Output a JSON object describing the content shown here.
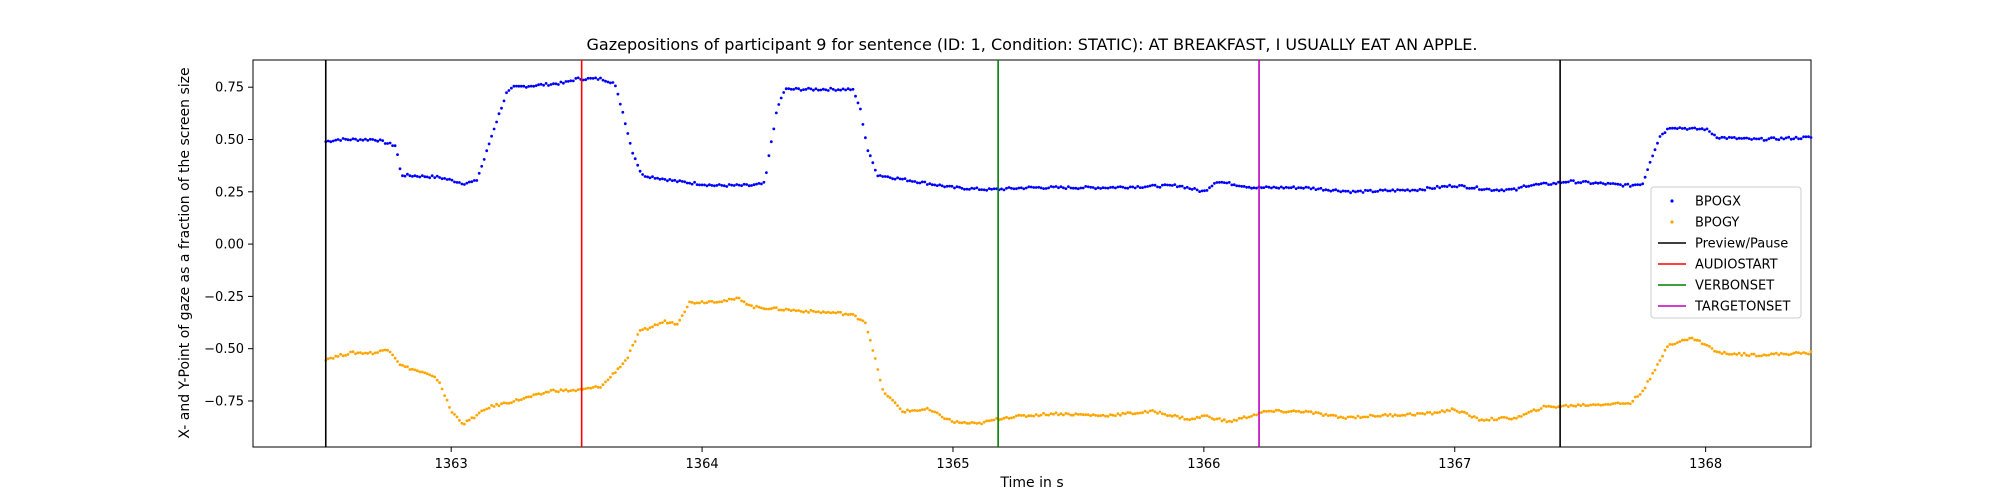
{
  "chart_data": {
    "type": "scatter",
    "title": "Gazepositions of participant 9 for sentence (ID: 1, Condition: STATIC):   AT BREAKFAST, I USUALLY EAT AN APPLE.",
    "xlabel": "Time in s",
    "ylabel": "X- and Y-Point of gaze as a fraction of the screen size",
    "xlim": [
      1362.21,
      1368.42
    ],
    "ylim": [
      -0.97,
      0.88
    ],
    "x_ticks": [
      1363,
      1364,
      1365,
      1366,
      1367,
      1368
    ],
    "y_ticks": [
      0.75,
      0.5,
      0.25,
      0.0,
      -0.25,
      -0.5,
      -0.75
    ],
    "grid": false,
    "legend_position": "center right",
    "series": [
      {
        "name": "BPOGX",
        "marker": "dot",
        "color": "#0000ff",
        "x_start": 1362.5,
        "x_end": 1368.42,
        "keypoints": [
          [
            1362.5,
            0.49
          ],
          [
            1362.55,
            0.5
          ],
          [
            1362.7,
            0.5
          ],
          [
            1362.75,
            0.48
          ],
          [
            1362.78,
            0.47
          ],
          [
            1362.8,
            0.33
          ],
          [
            1362.95,
            0.32
          ],
          [
            1363.05,
            0.29
          ],
          [
            1363.1,
            0.3
          ],
          [
            1363.13,
            0.4
          ],
          [
            1363.17,
            0.55
          ],
          [
            1363.22,
            0.72
          ],
          [
            1363.25,
            0.75
          ],
          [
            1363.45,
            0.77
          ],
          [
            1363.5,
            0.79
          ],
          [
            1363.6,
            0.79
          ],
          [
            1363.65,
            0.77
          ],
          [
            1363.68,
            0.65
          ],
          [
            1363.72,
            0.45
          ],
          [
            1363.76,
            0.33
          ],
          [
            1363.9,
            0.3
          ],
          [
            1364.05,
            0.28
          ],
          [
            1364.2,
            0.28
          ],
          [
            1364.25,
            0.29
          ],
          [
            1364.27,
            0.45
          ],
          [
            1364.3,
            0.65
          ],
          [
            1364.33,
            0.74
          ],
          [
            1364.6,
            0.74
          ],
          [
            1364.63,
            0.65
          ],
          [
            1364.66,
            0.45
          ],
          [
            1364.7,
            0.33
          ],
          [
            1364.9,
            0.29
          ],
          [
            1365.0,
            0.27
          ],
          [
            1365.15,
            0.26
          ],
          [
            1365.3,
            0.27
          ],
          [
            1365.6,
            0.27
          ],
          [
            1365.9,
            0.28
          ],
          [
            1366.0,
            0.25
          ],
          [
            1366.05,
            0.3
          ],
          [
            1366.1,
            0.29
          ],
          [
            1366.2,
            0.27
          ],
          [
            1366.4,
            0.27
          ],
          [
            1366.6,
            0.25
          ],
          [
            1366.85,
            0.26
          ],
          [
            1367.0,
            0.28
          ],
          [
            1367.15,
            0.26
          ],
          [
            1367.25,
            0.26
          ],
          [
            1367.28,
            0.28
          ],
          [
            1367.4,
            0.29
          ],
          [
            1367.45,
            0.3
          ],
          [
            1367.7,
            0.28
          ],
          [
            1367.75,
            0.29
          ],
          [
            1367.78,
            0.4
          ],
          [
            1367.82,
            0.52
          ],
          [
            1367.86,
            0.56
          ],
          [
            1367.95,
            0.55
          ],
          [
            1368.0,
            0.55
          ],
          [
            1368.05,
            0.51
          ],
          [
            1368.2,
            0.5
          ],
          [
            1368.42,
            0.51
          ]
        ]
      },
      {
        "name": "BPOGY",
        "marker": "dot",
        "color": "#ffa500",
        "x_start": 1362.5,
        "x_end": 1368.42,
        "keypoints": [
          [
            1362.5,
            -0.55
          ],
          [
            1362.6,
            -0.52
          ],
          [
            1362.7,
            -0.52
          ],
          [
            1362.75,
            -0.5
          ],
          [
            1362.8,
            -0.58
          ],
          [
            1362.9,
            -0.62
          ],
          [
            1362.95,
            -0.65
          ],
          [
            1363.0,
            -0.8
          ],
          [
            1363.05,
            -0.86
          ],
          [
            1363.15,
            -0.78
          ],
          [
            1363.25,
            -0.75
          ],
          [
            1363.35,
            -0.72
          ],
          [
            1363.4,
            -0.7
          ],
          [
            1363.5,
            -0.7
          ],
          [
            1363.6,
            -0.68
          ],
          [
            1363.7,
            -0.55
          ],
          [
            1363.75,
            -0.42
          ],
          [
            1363.85,
            -0.37
          ],
          [
            1363.9,
            -0.38
          ],
          [
            1363.95,
            -0.28
          ],
          [
            1364.1,
            -0.27
          ],
          [
            1364.15,
            -0.26
          ],
          [
            1364.2,
            -0.3
          ],
          [
            1364.4,
            -0.32
          ],
          [
            1364.55,
            -0.33
          ],
          [
            1364.6,
            -0.34
          ],
          [
            1364.65,
            -0.37
          ],
          [
            1364.68,
            -0.5
          ],
          [
            1364.72,
            -0.7
          ],
          [
            1364.8,
            -0.8
          ],
          [
            1364.9,
            -0.79
          ],
          [
            1365.0,
            -0.85
          ],
          [
            1365.1,
            -0.86
          ],
          [
            1365.2,
            -0.83
          ],
          [
            1365.4,
            -0.81
          ],
          [
            1365.6,
            -0.82
          ],
          [
            1365.8,
            -0.8
          ],
          [
            1365.95,
            -0.84
          ],
          [
            1366.0,
            -0.82
          ],
          [
            1366.1,
            -0.85
          ],
          [
            1366.25,
            -0.8
          ],
          [
            1366.4,
            -0.8
          ],
          [
            1366.55,
            -0.83
          ],
          [
            1366.7,
            -0.82
          ],
          [
            1366.9,
            -0.81
          ],
          [
            1367.0,
            -0.79
          ],
          [
            1367.1,
            -0.84
          ],
          [
            1367.25,
            -0.83
          ],
          [
            1367.35,
            -0.78
          ],
          [
            1367.5,
            -0.77
          ],
          [
            1367.7,
            -0.76
          ],
          [
            1367.75,
            -0.7
          ],
          [
            1367.8,
            -0.6
          ],
          [
            1367.85,
            -0.48
          ],
          [
            1367.95,
            -0.45
          ],
          [
            1368.0,
            -0.48
          ],
          [
            1368.05,
            -0.52
          ],
          [
            1368.2,
            -0.53
          ],
          [
            1368.42,
            -0.52
          ]
        ]
      }
    ],
    "vertical_lines": [
      {
        "name": "Preview/Pause",
        "color": "#000000",
        "x": 1362.5
      },
      {
        "name": "AUDIOSTART",
        "color": "#ff0000",
        "x": 1363.52
      },
      {
        "name": "VERBONSET",
        "color": "#008000",
        "x": 1365.18
      },
      {
        "name": "TARGETONSET",
        "color": "#bf00bf",
        "x": 1366.22
      },
      {
        "name": "Preview/Pause",
        "color": "#000000",
        "x": 1367.42
      }
    ],
    "legend": [
      {
        "label": "BPOGX",
        "kind": "marker",
        "color": "#0000ff"
      },
      {
        "label": "BPOGY",
        "kind": "marker",
        "color": "#ffa500"
      },
      {
        "label": "Preview/Pause",
        "kind": "line",
        "color": "#000000"
      },
      {
        "label": "AUDIOSTART",
        "kind": "line",
        "color": "#ff0000"
      },
      {
        "label": "VERBONSET",
        "kind": "line",
        "color": "#008000"
      },
      {
        "label": "TARGETONSET",
        "kind": "line",
        "color": "#bf00bf"
      }
    ]
  }
}
